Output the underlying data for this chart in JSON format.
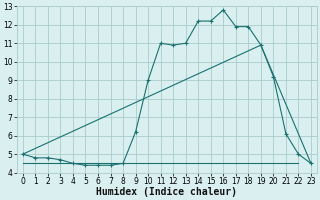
{
  "xlabel": "Humidex (Indice chaleur)",
  "bg_color": "#daf0f0",
  "grid_color": "#aacccc",
  "line_color": "#1a7070",
  "xlim": [
    -0.5,
    23.5
  ],
  "ylim": [
    4,
    13
  ],
  "yticks": [
    4,
    5,
    6,
    7,
    8,
    9,
    10,
    11,
    12,
    13
  ],
  "xticks": [
    0,
    1,
    2,
    3,
    4,
    5,
    6,
    7,
    8,
    9,
    10,
    11,
    12,
    13,
    14,
    15,
    16,
    17,
    18,
    19,
    20,
    21,
    22,
    23
  ],
  "line1_x": [
    0,
    1,
    2,
    3,
    4,
    5,
    6,
    7,
    8,
    9,
    10,
    11,
    12,
    13,
    14,
    15,
    16,
    17,
    18,
    19,
    20,
    21,
    22,
    23
  ],
  "line1_y": [
    5.0,
    4.8,
    4.8,
    4.7,
    4.5,
    4.4,
    4.4,
    4.4,
    4.5,
    6.2,
    9.0,
    11.0,
    10.9,
    11.0,
    12.2,
    12.2,
    12.8,
    11.9,
    11.9,
    10.9,
    9.2,
    6.1,
    5.0,
    4.5
  ],
  "line2_x": [
    0,
    8,
    22
  ],
  "line2_y": [
    4.5,
    4.5,
    4.5
  ],
  "line3_x": [
    0,
    19,
    23
  ],
  "line3_y": [
    5.0,
    10.9,
    4.5
  ],
  "xlabel_fontsize": 7,
  "tick_fontsize": 5.5
}
